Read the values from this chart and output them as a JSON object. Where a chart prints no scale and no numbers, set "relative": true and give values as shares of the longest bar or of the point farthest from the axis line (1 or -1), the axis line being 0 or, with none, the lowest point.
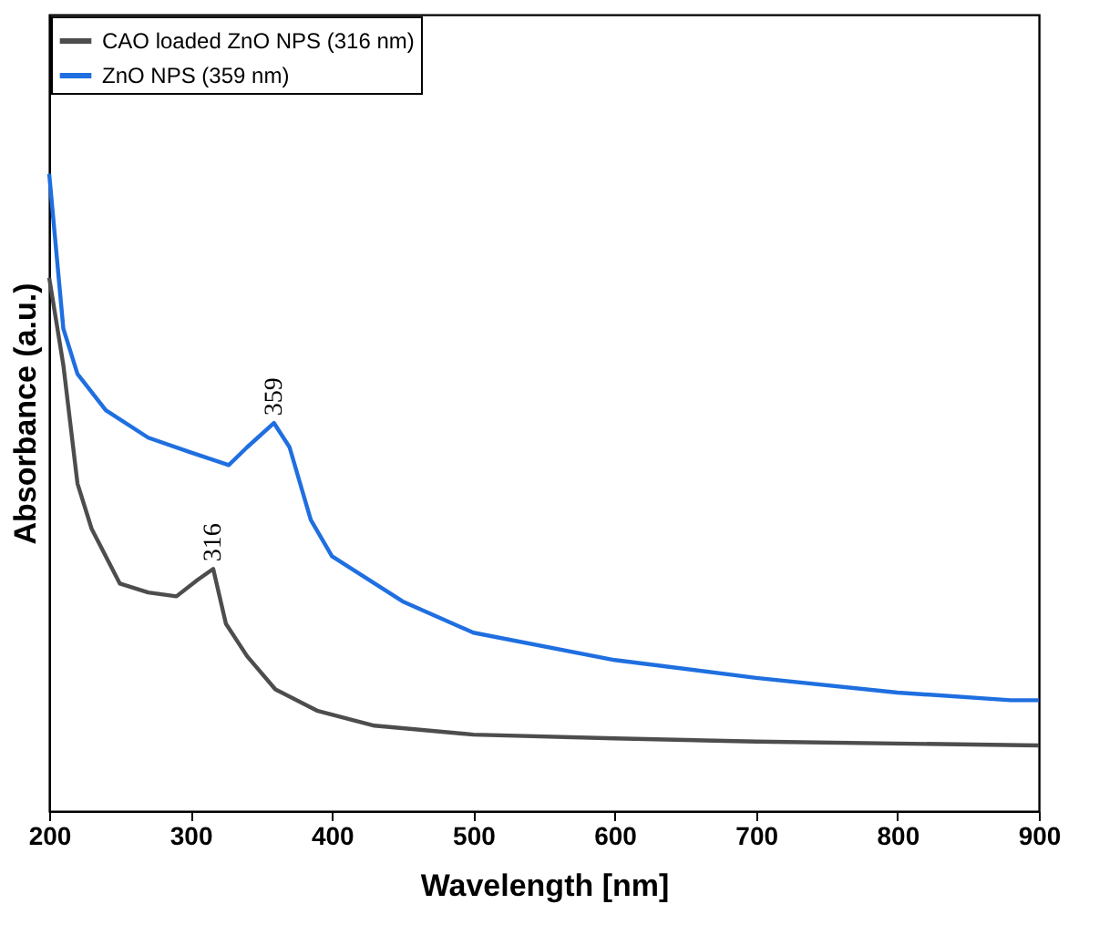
{
  "chart_data": {
    "type": "line",
    "relative": true,
    "xlabel": "Wavelength [nm]",
    "ylabel": "Absorbance (a.u.)",
    "xlim": [
      200,
      900
    ],
    "xticks": [
      200,
      300,
      400,
      500,
      600,
      700,
      800,
      900
    ],
    "grid": false,
    "legend": "top left",
    "marker": "none",
    "line_style": "solid",
    "series": [
      {
        "name": "CAO loaded ZnO NPS (316 nm)",
        "color": "#4d4d4d",
        "x": [
          200,
          210,
          220,
          230,
          250,
          270,
          290,
          305,
          316,
          325,
          340,
          360,
          390,
          430,
          500,
          600,
          700,
          900
        ],
        "values": [
          0.837,
          0.7,
          0.514,
          0.443,
          0.357,
          0.343,
          0.337,
          0.363,
          0.38,
          0.294,
          0.243,
          0.191,
          0.157,
          0.134,
          0.12,
          0.114,
          0.109,
          0.103
        ]
      },
      {
        "name": "ZnO NPS (359 nm)",
        "color": "#1f6fe0",
        "x": [
          200,
          210,
          220,
          240,
          270,
          300,
          327,
          340,
          359,
          370,
          385,
          400,
          450,
          500,
          600,
          700,
          800,
          880,
          900
        ],
        "values": [
          1.0,
          0.757,
          0.686,
          0.629,
          0.586,
          0.563,
          0.543,
          0.571,
          0.609,
          0.571,
          0.457,
          0.4,
          0.329,
          0.28,
          0.237,
          0.209,
          0.186,
          0.174,
          0.174
        ]
      }
    ],
    "annotations": [
      {
        "text": "316",
        "x": 316,
        "y": 0.38
      },
      {
        "text": "359",
        "x": 359,
        "y": 0.609
      }
    ]
  }
}
